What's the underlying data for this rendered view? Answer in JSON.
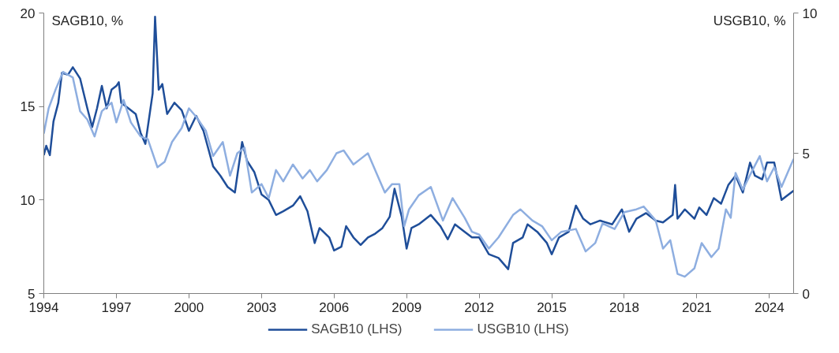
{
  "chart_data": {
    "type": "line",
    "ylabel": "SAGB10, %",
    "y2label": "USGB10, %",
    "xlim": [
      1994,
      2025
    ],
    "xticks": [
      1994,
      1997,
      2000,
      2003,
      2006,
      2009,
      2012,
      2015,
      2018,
      2021,
      2024
    ],
    "ylim": [
      5,
      20
    ],
    "yticks": [
      5,
      10,
      15,
      20
    ],
    "y2lim": [
      0,
      10
    ],
    "y2ticks": [
      0,
      5,
      10
    ],
    "grid": false,
    "legend": "bottom",
    "marker": "none",
    "line_style": "solid",
    "series": [
      {
        "name": "SAGB10 (LHS)",
        "color": "#1f4e99",
        "x": [
          1994.0,
          1994.1,
          1994.25,
          1994.4,
          1994.6,
          1994.75,
          1995.0,
          1995.2,
          1995.5,
          1995.8,
          1996.0,
          1996.2,
          1996.4,
          1996.6,
          1996.8,
          1997.0,
          1997.1,
          1997.2,
          1997.5,
          1997.8,
          1998.0,
          1998.2,
          1998.4,
          1998.5,
          1998.6,
          1998.75,
          1998.9,
          1999.1,
          1999.4,
          1999.7,
          2000.0,
          2000.3,
          2000.6,
          2001.0,
          2001.3,
          2001.6,
          2001.9,
          2002.2,
          2002.4,
          2002.7,
          2003.0,
          2003.3,
          2003.6,
          2003.9,
          2004.3,
          2004.6,
          2004.9,
          2005.2,
          2005.4,
          2005.8,
          2006.0,
          2006.3,
          2006.5,
          2006.8,
          2007.1,
          2007.4,
          2007.7,
          2008.0,
          2008.3,
          2008.5,
          2008.8,
          2009.0,
          2009.2,
          2009.5,
          2010.0,
          2010.4,
          2010.7,
          2011.0,
          2011.4,
          2011.7,
          2012.0,
          2012.4,
          2012.8,
          2013.2,
          2013.4,
          2013.8,
          2014.0,
          2014.4,
          2014.8,
          2015.0,
          2015.3,
          2015.7,
          2016.0,
          2016.3,
          2016.6,
          2017.0,
          2017.5,
          2017.9,
          2018.2,
          2018.5,
          2018.9,
          2019.3,
          2019.6,
          2020.0,
          2020.1,
          2020.2,
          2020.5,
          2020.9,
          2021.1,
          2021.4,
          2021.7,
          2022.0,
          2022.3,
          2022.6,
          2022.9,
          2023.2,
          2023.4,
          2023.7,
          2023.9,
          2024.2,
          2024.5,
          2024.7,
          2025.0
        ],
        "values": [
          12.4,
          12.9,
          12.4,
          14.2,
          15.2,
          16.8,
          16.7,
          17.1,
          16.5,
          14.9,
          13.9,
          14.9,
          16.1,
          14.9,
          15.9,
          16.1,
          16.3,
          15.2,
          14.9,
          14.6,
          13.6,
          13.0,
          14.8,
          15.7,
          19.8,
          15.9,
          16.2,
          14.6,
          15.2,
          14.8,
          13.7,
          14.5,
          13.7,
          11.8,
          11.3,
          10.7,
          10.4,
          13.1,
          12.1,
          11.5,
          10.3,
          10.0,
          9.2,
          9.4,
          9.7,
          10.2,
          9.4,
          7.7,
          8.5,
          8.0,
          7.3,
          7.5,
          8.6,
          8.0,
          7.6,
          8.0,
          8.2,
          8.5,
          9.1,
          10.6,
          9.1,
          7.4,
          8.5,
          8.7,
          9.2,
          8.6,
          7.9,
          8.7,
          8.3,
          8.0,
          8.0,
          7.1,
          6.9,
          6.3,
          7.7,
          8.0,
          8.7,
          8.3,
          7.7,
          7.1,
          8.0,
          8.3,
          9.7,
          9.0,
          8.7,
          8.9,
          8.7,
          9.5,
          8.3,
          9.0,
          9.3,
          8.9,
          8.8,
          9.2,
          10.8,
          9.0,
          9.5,
          9.0,
          9.6,
          9.2,
          10.1,
          9.8,
          10.8,
          11.3,
          10.4,
          12.0,
          11.3,
          11.1,
          12.0,
          12.0,
          10.0,
          10.2,
          10.5
        ]
      },
      {
        "name": "USGB10 (LHS)",
        "color": "#8eaee0",
        "axis": "y2",
        "x": [
          1994.0,
          1994.2,
          1994.5,
          1994.8,
          1995.2,
          1995.5,
          1995.8,
          1996.1,
          1996.4,
          1996.8,
          1997.0,
          1997.3,
          1997.6,
          1998.0,
          1998.3,
          1998.7,
          1999.0,
          1999.3,
          1999.7,
          2000.0,
          2000.3,
          2000.7,
          2001.0,
          2001.4,
          2001.7,
          2002.0,
          2002.3,
          2002.6,
          2003.0,
          2003.3,
          2003.6,
          2003.9,
          2004.3,
          2004.7,
          2005.0,
          2005.3,
          2005.7,
          2006.1,
          2006.4,
          2006.8,
          2007.1,
          2007.4,
          2007.8,
          2008.1,
          2008.4,
          2008.7,
          2008.9,
          2009.1,
          2009.5,
          2010.0,
          2010.5,
          2010.9,
          2011.4,
          2011.7,
          2012.0,
          2012.4,
          2012.8,
          2013.4,
          2013.7,
          2014.2,
          2014.6,
          2015.0,
          2015.4,
          2016.0,
          2016.4,
          2016.8,
          2017.1,
          2017.6,
          2018.0,
          2018.5,
          2018.8,
          2019.3,
          2019.6,
          2019.9,
          2020.2,
          2020.5,
          2020.9,
          2021.2,
          2021.6,
          2021.9,
          2022.2,
          2022.4,
          2022.6,
          2022.9,
          2023.3,
          2023.6,
          2023.9,
          2024.2,
          2024.5,
          2024.8,
          2025.0
        ],
        "values": [
          5.7,
          6.6,
          7.3,
          7.9,
          7.7,
          6.5,
          6.2,
          5.6,
          6.5,
          6.8,
          6.1,
          6.9,
          6.1,
          5.6,
          5.5,
          4.5,
          4.7,
          5.4,
          5.9,
          6.6,
          6.3,
          5.8,
          4.9,
          5.4,
          4.2,
          5.0,
          5.2,
          3.6,
          3.9,
          3.4,
          4.4,
          4.0,
          4.6,
          4.1,
          4.4,
          4.0,
          4.4,
          5.0,
          5.1,
          4.6,
          4.8,
          5.0,
          4.2,
          3.6,
          3.9,
          3.9,
          2.4,
          3.0,
          3.5,
          3.8,
          2.6,
          3.4,
          2.7,
          2.2,
          2.1,
          1.6,
          2.0,
          2.8,
          3.0,
          2.6,
          2.4,
          1.9,
          2.2,
          2.3,
          1.5,
          1.8,
          2.5,
          2.3,
          2.9,
          3.0,
          3.1,
          2.6,
          1.6,
          1.9,
          0.7,
          0.6,
          0.9,
          1.8,
          1.3,
          1.6,
          3.0,
          2.7,
          4.3,
          3.7,
          4.4,
          4.9,
          4.0,
          4.5,
          3.8,
          4.4,
          4.8
        ]
      }
    ]
  }
}
